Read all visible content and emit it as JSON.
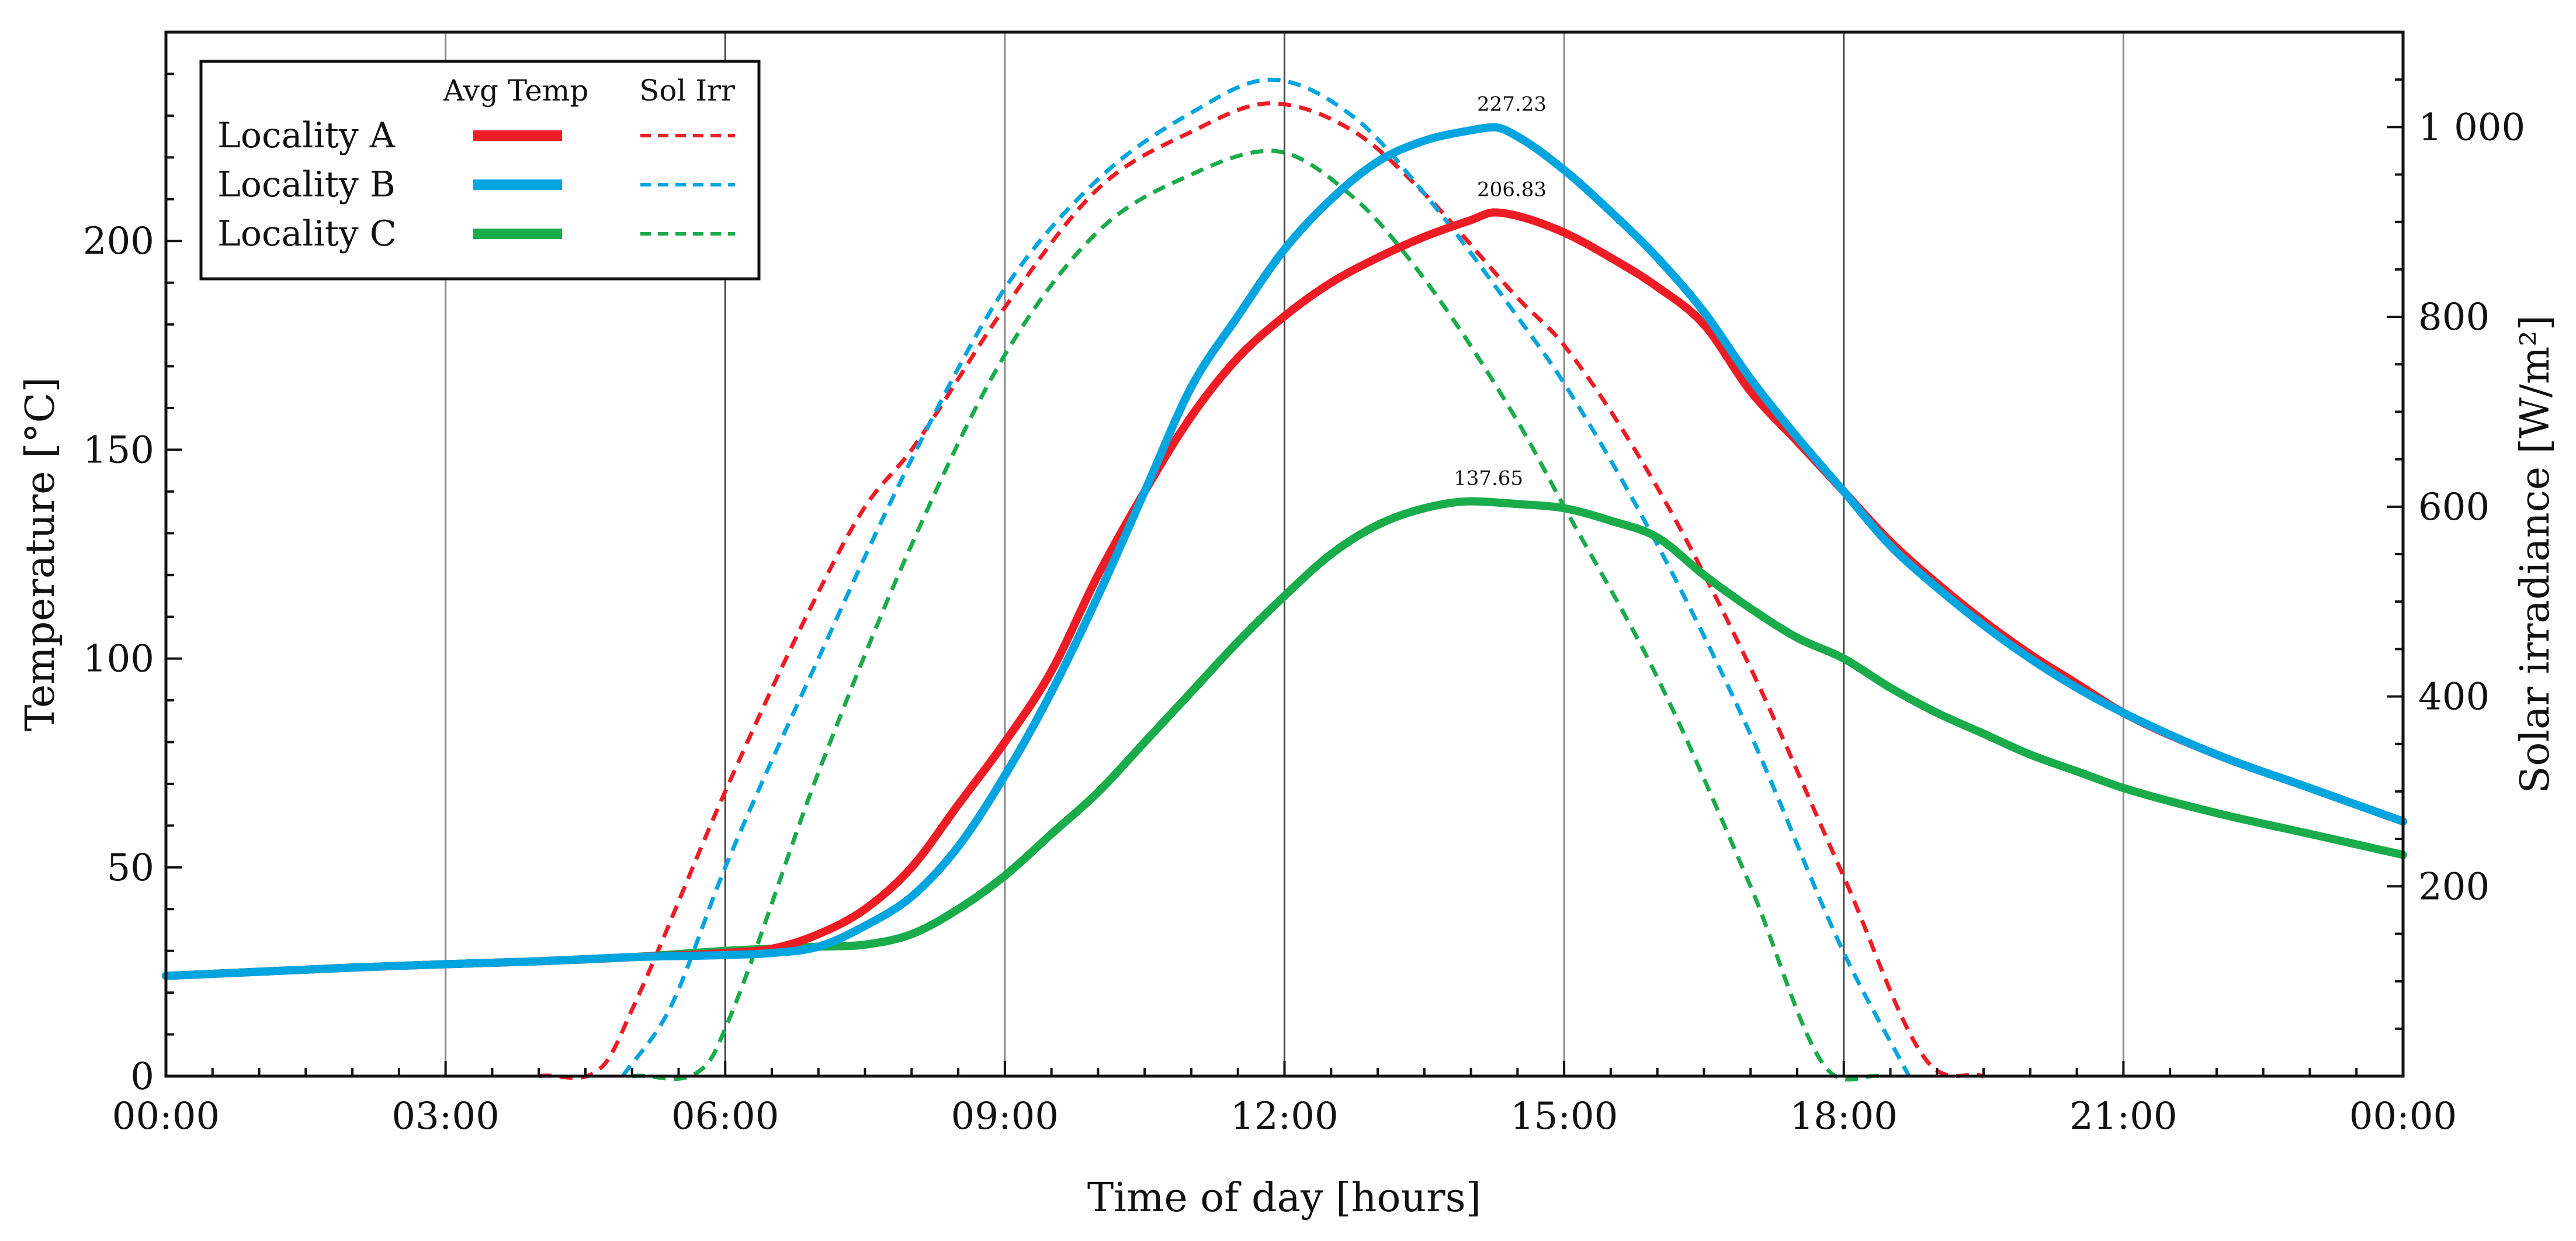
{
  "chart_data": {
    "type": "line",
    "xlabel": "Time of day [hours]",
    "ylabel": "Temperature [°C]",
    "y2label": "Solar irradiance [W/m²]",
    "ylim": [
      0,
      250
    ],
    "y2lim": [
      0,
      1100
    ],
    "xlim": [
      0,
      24
    ],
    "x_ticks": [
      {
        "value": 0,
        "label": "00:00"
      },
      {
        "value": 3,
        "label": "03:00"
      },
      {
        "value": 6,
        "label": "06:00"
      },
      {
        "value": 9,
        "label": "09:00"
      },
      {
        "value": 12,
        "label": "12:00"
      },
      {
        "value": 15,
        "label": "15:00"
      },
      {
        "value": 18,
        "label": "18:00"
      },
      {
        "value": 21,
        "label": "21:00"
      },
      {
        "value": 24,
        "label": "00:00"
      }
    ],
    "y_ticks": [
      {
        "value": 0,
        "label": "0"
      },
      {
        "value": 50,
        "label": "50"
      },
      {
        "value": 100,
        "label": "100"
      },
      {
        "value": 150,
        "label": "150"
      },
      {
        "value": 200,
        "label": "200"
      }
    ],
    "y2_ticks": [
      {
        "value": 200,
        "label": "200"
      },
      {
        "value": 400,
        "label": "400"
      },
      {
        "value": 600,
        "label": "600"
      },
      {
        "value": 800,
        "label": "800"
      },
      {
        "value": 1000,
        "label": "1 000"
      }
    ],
    "legend": {
      "position": "top-left",
      "col_avg_temp": "Avg Temp",
      "col_sol_irr": "Sol Irr"
    },
    "series": [
      {
        "name": "Locality A",
        "color": "#ee1c25",
        "temp": [
          [
            0,
            24
          ],
          [
            1,
            25
          ],
          [
            2,
            26
          ],
          [
            3,
            26.8
          ],
          [
            4,
            27.5
          ],
          [
            5,
            28.5
          ],
          [
            6,
            29.5
          ],
          [
            6.5,
            30.5
          ],
          [
            7,
            34
          ],
          [
            7.5,
            40
          ],
          [
            8,
            50
          ],
          [
            8.5,
            65
          ],
          [
            9,
            80
          ],
          [
            9.5,
            97
          ],
          [
            10,
            120
          ],
          [
            10.5,
            140
          ],
          [
            11,
            158
          ],
          [
            11.5,
            172
          ],
          [
            12,
            182
          ],
          [
            12.5,
            190
          ],
          [
            13,
            196
          ],
          [
            13.5,
            201
          ],
          [
            14,
            205
          ],
          [
            14.25,
            206.83
          ],
          [
            14.5,
            206
          ],
          [
            15,
            202
          ],
          [
            15.5,
            196
          ],
          [
            16,
            189
          ],
          [
            16.5,
            180
          ],
          [
            17,
            164
          ],
          [
            17.5,
            152
          ],
          [
            18,
            140
          ],
          [
            18.5,
            128
          ],
          [
            19,
            118
          ],
          [
            19.5,
            109
          ],
          [
            20,
            101
          ],
          [
            20.5,
            94
          ],
          [
            21,
            87
          ],
          [
            22,
            77
          ],
          [
            23,
            69
          ],
          [
            24,
            61
          ]
        ],
        "irr": [
          [
            4,
            0
          ],
          [
            4.7,
            12
          ],
          [
            5,
            70
          ],
          [
            6,
            300
          ],
          [
            7,
            510
          ],
          [
            7.5,
            600
          ],
          [
            8,
            660
          ],
          [
            9,
            810
          ],
          [
            10,
            935
          ],
          [
            11,
            995
          ],
          [
            11.85,
            1025
          ],
          [
            12.75,
            995
          ],
          [
            13.5,
            930
          ],
          [
            14.5,
            820
          ],
          [
            15,
            770
          ],
          [
            16,
            620
          ],
          [
            17,
            430
          ],
          [
            18,
            210
          ],
          [
            18.9,
            15
          ],
          [
            19.5,
            0
          ]
        ],
        "peak_label": "206.83",
        "peak": [
          14.25,
          206.83
        ]
      },
      {
        "name": "Locality B",
        "color": "#00a5df",
        "temp": [
          [
            0,
            24
          ],
          [
            1,
            25
          ],
          [
            2,
            26
          ],
          [
            3,
            26.8
          ],
          [
            4,
            27.5
          ],
          [
            5,
            28.5
          ],
          [
            6,
            29
          ],
          [
            6.5,
            29.5
          ],
          [
            7,
            31
          ],
          [
            7.5,
            36
          ],
          [
            8,
            43
          ],
          [
            8.5,
            55
          ],
          [
            9,
            72
          ],
          [
            9.5,
            92
          ],
          [
            10,
            115
          ],
          [
            10.5,
            140
          ],
          [
            11,
            165
          ],
          [
            11.5,
            182
          ],
          [
            12,
            198
          ],
          [
            12.5,
            210
          ],
          [
            13,
            219
          ],
          [
            13.5,
            224
          ],
          [
            14,
            226.5
          ],
          [
            14.25,
            227.23
          ],
          [
            14.5,
            225
          ],
          [
            15,
            217
          ],
          [
            15.5,
            207
          ],
          [
            16,
            196
          ],
          [
            16.5,
            183
          ],
          [
            17,
            167
          ],
          [
            17.5,
            153
          ],
          [
            18,
            140
          ],
          [
            18.5,
            127
          ],
          [
            19,
            117
          ],
          [
            19.5,
            108
          ],
          [
            20,
            100
          ],
          [
            20.5,
            93
          ],
          [
            21,
            87
          ],
          [
            22,
            77
          ],
          [
            23,
            69
          ],
          [
            24,
            61
          ]
        ],
        "irr": [
          [
            4.9,
            0
          ],
          [
            5.4,
            70
          ],
          [
            6,
            220
          ],
          [
            7,
            440
          ],
          [
            8,
            650
          ],
          [
            9,
            830
          ],
          [
            10,
            945
          ],
          [
            11,
            1015
          ],
          [
            11.85,
            1050
          ],
          [
            12.75,
            1010
          ],
          [
            13.5,
            930
          ],
          [
            14.5,
            800
          ],
          [
            15,
            730
          ],
          [
            16,
            560
          ],
          [
            17,
            360
          ],
          [
            18,
            130
          ],
          [
            18.7,
            0
          ]
        ],
        "peak_label": "227.23",
        "peak": [
          14.25,
          227.23
        ]
      },
      {
        "name": "Locality C",
        "color": "#1aab4a",
        "temp": [
          [
            0,
            24
          ],
          [
            1,
            25
          ],
          [
            2,
            26
          ],
          [
            3,
            26.8
          ],
          [
            4,
            27.5
          ],
          [
            5,
            28.5
          ],
          [
            6,
            30
          ],
          [
            7,
            31
          ],
          [
            7.5,
            31.5
          ],
          [
            8,
            34
          ],
          [
            8.5,
            40
          ],
          [
            9,
            48
          ],
          [
            9.5,
            58
          ],
          [
            10,
            68
          ],
          [
            10.5,
            80
          ],
          [
            11,
            92
          ],
          [
            11.5,
            104
          ],
          [
            12,
            115
          ],
          [
            12.5,
            125
          ],
          [
            13,
            132
          ],
          [
            13.5,
            136
          ],
          [
            14,
            137.65
          ],
          [
            14.5,
            137
          ],
          [
            15,
            136
          ],
          [
            15.5,
            133
          ],
          [
            16,
            129
          ],
          [
            16.5,
            120
          ],
          [
            17,
            112
          ],
          [
            17.5,
            105
          ],
          [
            18,
            100
          ],
          [
            18.5,
            93
          ],
          [
            19,
            87
          ],
          [
            19.5,
            82
          ],
          [
            20,
            77
          ],
          [
            20.5,
            73
          ],
          [
            21,
            69
          ],
          [
            22,
            63
          ],
          [
            23,
            58
          ],
          [
            24,
            53
          ]
        ],
        "irr": [
          [
            5,
            0
          ],
          [
            5.8,
            12
          ],
          [
            6,
            50
          ],
          [
            7,
            320
          ],
          [
            8,
            560
          ],
          [
            9,
            760
          ],
          [
            10,
            890
          ],
          [
            11,
            950
          ],
          [
            11.85,
            975
          ],
          [
            12.75,
            925
          ],
          [
            13.5,
            840
          ],
          [
            14.5,
            690
          ],
          [
            15,
            600
          ],
          [
            16,
            420
          ],
          [
            17,
            200
          ],
          [
            17.8,
            10
          ],
          [
            18.4,
            0
          ]
        ],
        "peak_label": "137.65",
        "peak": [
          14.0,
          137.65
        ]
      }
    ]
  }
}
